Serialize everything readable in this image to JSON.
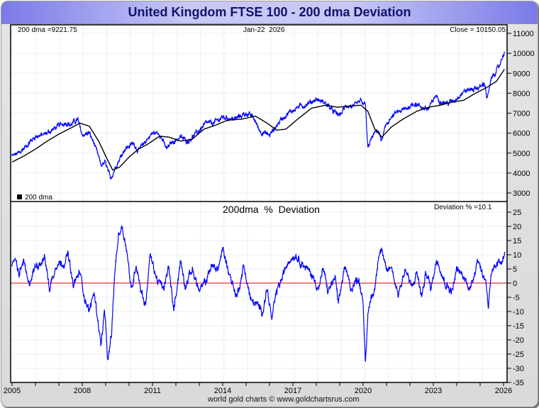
{
  "title": "United Kingdom FTSE 100 - 200 dma Deviation",
  "footer": "world gold charts © www.goldchartsrus.com",
  "colors": {
    "price": "#0000ff",
    "dma": "#000000",
    "deviation": "#0000ff",
    "zero_line": "#dd0000",
    "grid": "#e6f0f8"
  },
  "chart_data": [
    {
      "type": "line",
      "title": "",
      "labels": {
        "dma_readout": "200 dma =9221.75",
        "date": "Jan-22  2026",
        "close_readout": "Close = 10150.05",
        "legend": "200 dma"
      },
      "ylim": [
        2700,
        11500
      ],
      "yticks": [
        "3000",
        "4000",
        "5000",
        "6000",
        "7000",
        "8000",
        "9000",
        "10000",
        "11000"
      ],
      "xlim": [
        2004.95,
        2026.1
      ],
      "xticks": [
        "2005",
        "2008",
        "2011",
        "2014",
        "2017",
        "2020",
        "2023",
        "2026"
      ],
      "series": [
        {
          "name": "Close",
          "x": [
            2005.0,
            2005.3,
            2005.6,
            2006.0,
            2006.3,
            2006.5,
            2006.9,
            2007.3,
            2007.5,
            2007.8,
            2008.0,
            2008.3,
            2008.5,
            2008.8,
            2009.0,
            2009.2,
            2009.5,
            2009.8,
            2010.2,
            2010.4,
            2010.7,
            2011.0,
            2011.3,
            2011.6,
            2011.8,
            2012.2,
            2012.5,
            2012.8,
            2013.3,
            2013.6,
            2014.0,
            2014.5,
            2015.0,
            2015.3,
            2015.6,
            2016.0,
            2016.2,
            2016.5,
            2016.8,
            2017.2,
            2017.5,
            2018.0,
            2018.4,
            2018.8,
            2019.0,
            2019.3,
            2019.6,
            2019.9,
            2020.1,
            2020.2,
            2020.3,
            2020.6,
            2020.8,
            2021.0,
            2021.4,
            2021.8,
            2022.2,
            2022.5,
            2022.8,
            2023.1,
            2023.3,
            2023.6,
            2023.9,
            2024.3,
            2024.6,
            2025.0,
            2025.2,
            2025.3,
            2025.5,
            2025.8,
            2026.05
          ],
          "y": [
            4850,
            5000,
            5350,
            5850,
            5900,
            6000,
            6300,
            6550,
            6400,
            6700,
            5900,
            6000,
            5500,
            4400,
            4500,
            3700,
            4500,
            5200,
            5500,
            5100,
            5600,
            6000,
            6000,
            5200,
            5500,
            5800,
            5600,
            5900,
            6500,
            6500,
            6800,
            6700,
            7000,
            6800,
            6100,
            5900,
            6200,
            6700,
            7000,
            7300,
            7400,
            7700,
            7500,
            7000,
            6900,
            7400,
            7300,
            7600,
            7400,
            5200,
            5600,
            6200,
            5600,
            6500,
            7000,
            7200,
            7500,
            7300,
            7200,
            7900,
            7600,
            7500,
            7650,
            8100,
            8200,
            8300,
            8500,
            7700,
            8800,
            9300,
            10150
          ]
        },
        {
          "name": "200 dma",
          "x": [
            2005.0,
            2005.5,
            2006.0,
            2006.5,
            2007.0,
            2007.5,
            2007.9,
            2008.3,
            2008.7,
            2009.0,
            2009.3,
            2009.6,
            2010.0,
            2010.4,
            2010.8,
            2011.3,
            2011.7,
            2012.2,
            2012.7,
            2013.2,
            2013.7,
            2014.2,
            2014.8,
            2015.4,
            2015.9,
            2016.3,
            2016.7,
            2017.2,
            2017.8,
            2018.4,
            2018.9,
            2019.4,
            2019.9,
            2020.2,
            2020.5,
            2020.8,
            2021.2,
            2021.7,
            2022.3,
            2022.8,
            2023.3,
            2023.8,
            2024.3,
            2024.8,
            2025.3,
            2025.7,
            2026.05
          ],
          "y": [
            4550,
            4850,
            5200,
            5600,
            5950,
            6250,
            6500,
            6350,
            5600,
            4850,
            4150,
            4300,
            4800,
            5200,
            5450,
            5850,
            5800,
            5600,
            5700,
            6200,
            6400,
            6650,
            6700,
            6850,
            6500,
            6150,
            6200,
            6700,
            7250,
            7400,
            7300,
            7350,
            7400,
            7100,
            6200,
            5800,
            6300,
            6700,
            7100,
            7300,
            7400,
            7550,
            7650,
            8000,
            8300,
            8600,
            9221.75
          ]
        }
      ]
    },
    {
      "type": "line",
      "title": "200dma  %  Deviation",
      "labels": {
        "readout": "Deviation % =10.1"
      },
      "ylim": [
        -35,
        28
      ],
      "yticks": [
        "25",
        "20",
        "15",
        "10",
        "5",
        "0",
        "-5",
        "-10",
        "-15",
        "-20",
        "-25",
        "-30",
        "-35"
      ],
      "xlim": [
        2004.95,
        2026.1
      ],
      "xticks": [
        "2005",
        "2008",
        "2011",
        "2014",
        "2017",
        "2020",
        "2023",
        "2026"
      ],
      "series": [
        {
          "name": "Deviation %",
          "x": [
            2005.0,
            2005.1,
            2005.3,
            2005.5,
            2005.7,
            2006.0,
            2006.3,
            2006.4,
            2006.6,
            2006.9,
            2007.2,
            2007.4,
            2007.6,
            2007.9,
            2008.1,
            2008.3,
            2008.5,
            2008.7,
            2008.8,
            2008.95,
            2009.1,
            2009.25,
            2009.4,
            2009.55,
            2009.7,
            2009.9,
            2010.1,
            2010.3,
            2010.5,
            2010.7,
            2010.9,
            2011.2,
            2011.5,
            2011.7,
            2011.9,
            2012.2,
            2012.4,
            2012.7,
            2013.0,
            2013.3,
            2013.5,
            2013.8,
            2014.0,
            2014.3,
            2014.6,
            2014.9,
            2015.2,
            2015.5,
            2015.7,
            2015.9,
            2016.1,
            2016.3,
            2016.6,
            2016.8,
            2017.1,
            2017.5,
            2017.8,
            2018.1,
            2018.3,
            2018.5,
            2018.8,
            2018.95,
            2019.2,
            2019.5,
            2019.8,
            2020.0,
            2020.1,
            2020.2,
            2020.25,
            2020.35,
            2020.5,
            2020.65,
            2020.8,
            2020.9,
            2021.0,
            2021.2,
            2021.5,
            2021.8,
            2022.1,
            2022.3,
            2022.5,
            2022.7,
            2022.9,
            2023.1,
            2023.2,
            2023.5,
            2023.8,
            2024.0,
            2024.3,
            2024.6,
            2024.9,
            2025.1,
            2025.25,
            2025.35,
            2025.45,
            2025.7,
            2025.9,
            2026.05
          ],
          "y": [
            5,
            9,
            3,
            8,
            -1,
            6,
            8,
            9,
            -2,
            7,
            7,
            10,
            -1,
            4,
            -5,
            -10,
            -3,
            -15,
            -22,
            -10,
            -28,
            -18,
            5,
            17,
            20,
            12,
            -3,
            7,
            -2,
            -8,
            10,
            1,
            -2,
            6,
            -10,
            8,
            -1,
            5,
            -3,
            1,
            6,
            5,
            12,
            3,
            -5,
            6,
            -6,
            -8,
            -10,
            -2,
            -13,
            -3,
            3,
            8,
            10,
            6,
            3,
            -2,
            5,
            -3,
            2,
            -8,
            6,
            -2,
            2,
            -6,
            -30,
            -12,
            -8,
            -5,
            -2,
            10,
            12,
            7,
            4,
            6,
            -4,
            5,
            -2,
            4,
            -5,
            4,
            -2,
            7,
            8,
            0,
            -3,
            5,
            2,
            -2,
            9,
            3,
            1,
            -8,
            2,
            6,
            8,
            10.1
          ]
        }
      ]
    }
  ]
}
